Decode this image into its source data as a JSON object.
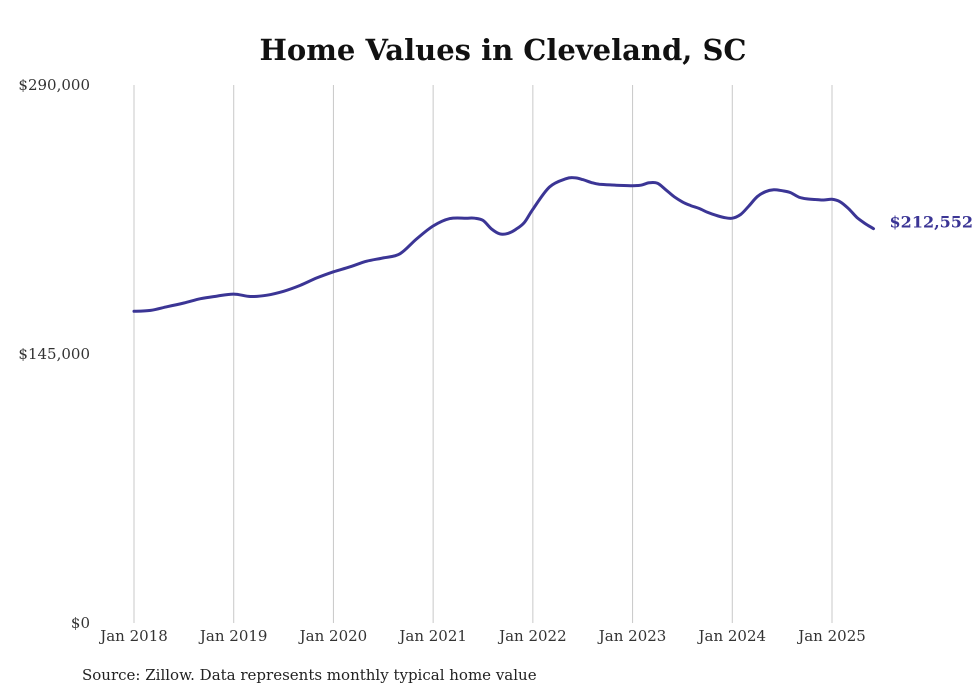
{
  "colors": {
    "line": "#3b3595",
    "grid": "#c8c8c8",
    "text": "#333333"
  },
  "chart_data": {
    "type": "line",
    "title": "Home Values in Cleveland, SC",
    "xlabel": "",
    "ylabel": "",
    "ylim": [
      0,
      290000
    ],
    "y_ticks": [
      {
        "value": 0,
        "label": "$0"
      },
      {
        "value": 145000,
        "label": "$145,000"
      },
      {
        "value": 290000,
        "label": "$290,000"
      }
    ],
    "x_ticks": [
      {
        "date": "2018-01",
        "label": "Jan 2018"
      },
      {
        "date": "2019-01",
        "label": "Jan 2019"
      },
      {
        "date": "2020-01",
        "label": "Jan 2020"
      },
      {
        "date": "2021-01",
        "label": "Jan 2021"
      },
      {
        "date": "2022-01",
        "label": "Jan 2022"
      },
      {
        "date": "2023-01",
        "label": "Jan 2023"
      },
      {
        "date": "2024-01",
        "label": "Jan 2024"
      },
      {
        "date": "2025-01",
        "label": "Jan 2025"
      }
    ],
    "xlim": [
      "2018-01",
      "2025-06"
    ],
    "grid": {
      "vertical": true,
      "horizontal": false
    },
    "end_label": "$212,552",
    "series": [
      {
        "x": [
          "2018-01",
          "2018-03",
          "2018-05",
          "2018-07",
          "2018-09",
          "2018-11",
          "2019-01",
          "2019-03",
          "2019-05",
          "2019-07",
          "2019-09",
          "2019-11",
          "2020-01",
          "2020-03",
          "2020-05",
          "2020-07",
          "2020-09",
          "2020-11",
          "2021-01",
          "2021-03",
          "2021-05",
          "2021-06",
          "2021-07",
          "2021-08",
          "2021-09",
          "2021-10",
          "2021-11",
          "2021-12",
          "2022-01",
          "2022-03",
          "2022-05",
          "2022-06",
          "2022-07",
          "2022-08",
          "2022-09",
          "2022-11",
          "2023-01",
          "2023-02",
          "2023-03",
          "2023-04",
          "2023-05",
          "2023-06",
          "2023-07",
          "2023-08",
          "2023-09",
          "2023-10",
          "2023-11",
          "2023-12",
          "2024-01",
          "2024-02",
          "2024-03",
          "2024-04",
          "2024-05",
          "2024-06",
          "2024-07",
          "2024-08",
          "2024-09",
          "2024-10",
          "2024-11",
          "2024-12",
          "2025-01",
          "2025-02",
          "2025-03",
          "2025-04",
          "2025-05",
          "2025-06"
        ],
        "values": [
          168000,
          168500,
          170500,
          172500,
          174800,
          176200,
          177300,
          176000,
          176700,
          178800,
          182000,
          186000,
          189300,
          192000,
          195000,
          196800,
          199000,
          207000,
          214000,
          218000,
          218200,
          218200,
          217000,
          212500,
          209800,
          210000,
          212300,
          216000,
          223000,
          235000,
          239500,
          240000,
          239000,
          237500,
          236500,
          236000,
          235700,
          236000,
          237300,
          237000,
          233500,
          229800,
          227000,
          225000,
          223500,
          221400,
          219800,
          218600,
          218200,
          220200,
          224800,
          229800,
          232500,
          233500,
          233000,
          232000,
          229600,
          228600,
          228300,
          228000,
          228400,
          227000,
          223300,
          218600,
          215300,
          212552
        ]
      }
    ]
  },
  "footer": {
    "source": "Source: Zillow. Data represents monthly typical home value"
  }
}
